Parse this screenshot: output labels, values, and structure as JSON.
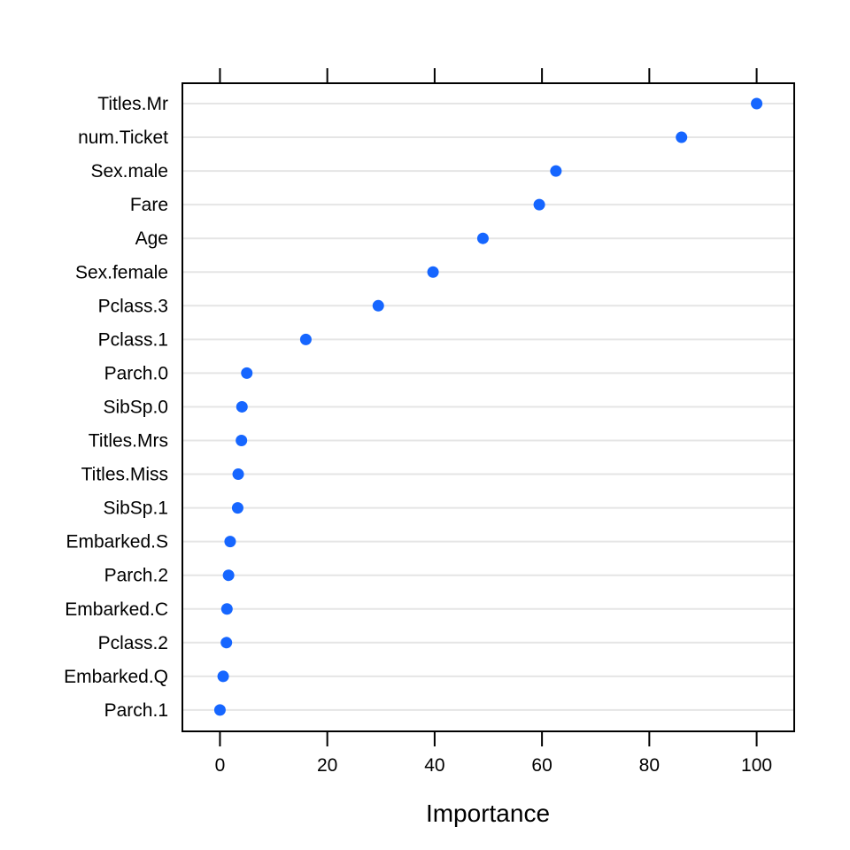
{
  "chart_data": {
    "type": "scatter",
    "style": "dotplot",
    "title": "",
    "xlabel": "Importance",
    "ylabel": "",
    "xlim": [
      -7,
      107
    ],
    "x_ticks": [
      0,
      20,
      40,
      60,
      80,
      100
    ],
    "grid": "horizontal",
    "legend": "none",
    "point_color": "#1666FF",
    "grid_color": "#E5E5E5",
    "categories": [
      "Titles.Mr",
      "num.Ticket",
      "Sex.male",
      "Fare",
      "Age",
      "Sex.female",
      "Pclass.3",
      "Pclass.1",
      "Parch.0",
      "SibSp.0",
      "Titles.Mrs",
      "Titles.Miss",
      "SibSp.1",
      "Embarked.S",
      "Parch.2",
      "Embarked.C",
      "Pclass.2",
      "Embarked.Q",
      "Parch.1"
    ],
    "values": [
      100,
      86,
      62.6,
      59.5,
      49,
      39.7,
      29.5,
      16,
      5,
      4.1,
      4,
      3.4,
      3.3,
      1.9,
      1.6,
      1.3,
      1.2,
      0.6,
      0
    ]
  }
}
